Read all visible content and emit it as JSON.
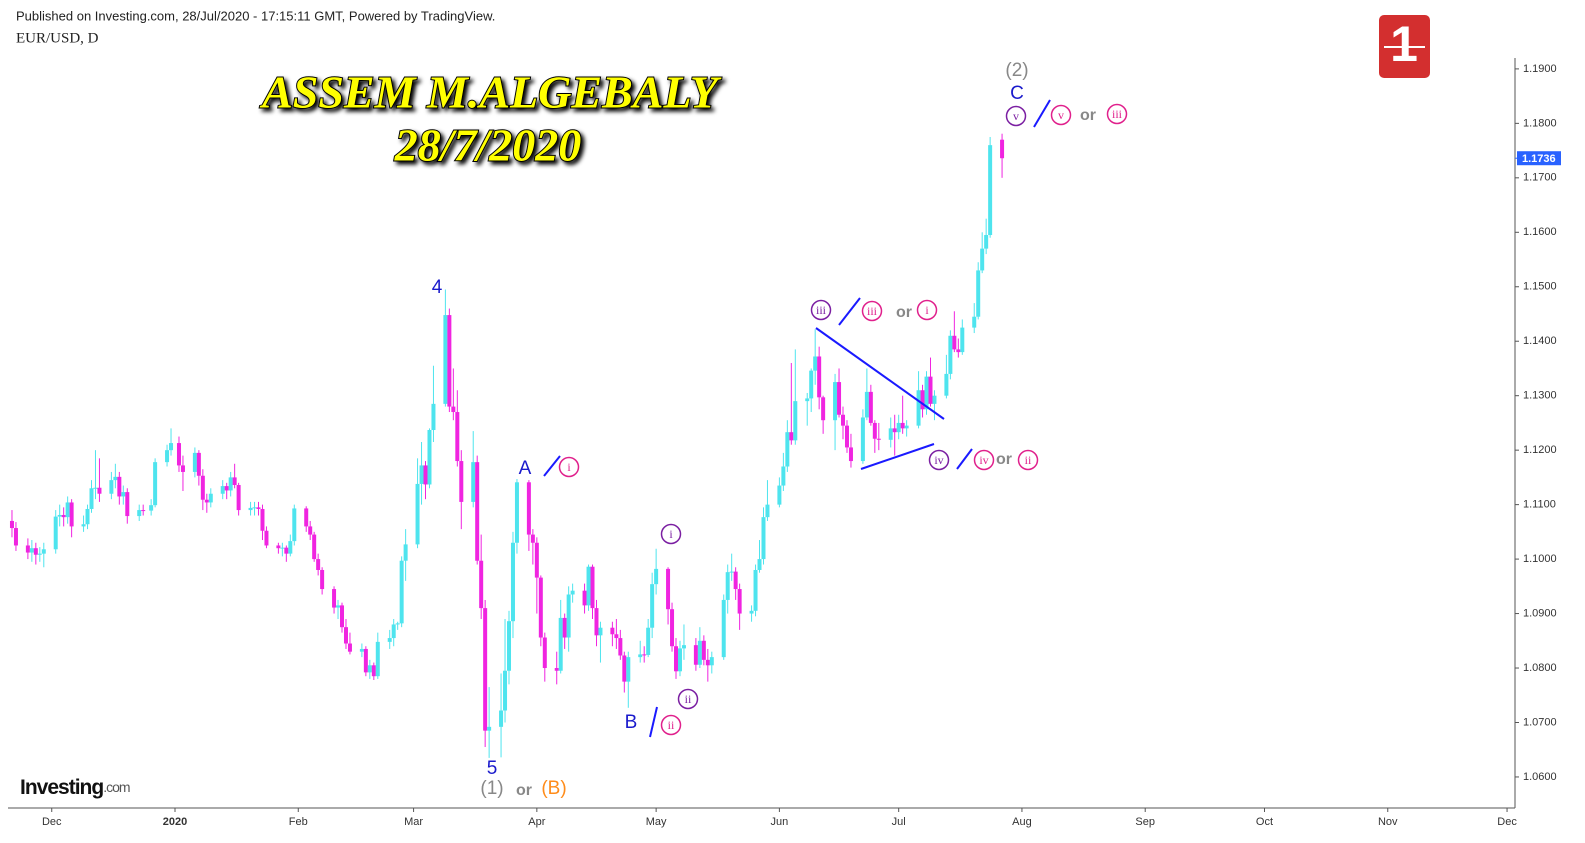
{
  "header": {
    "published": "Published on Investing.com, 28/Jul/2020 - 17:15:11 GMT, Powered by TradingView.",
    "symbol": "EUR/USD, D"
  },
  "overlay_title": [
    "ASSEM M.ALGEBALY",
    "28/7/2020"
  ],
  "logos": {
    "investing": "Investing",
    "investing_suffix": ".com",
    "badge": "1"
  },
  "chart_data": {
    "type": "candlestick",
    "title": "EUR/USD, D",
    "up_color": "#4ee4ee",
    "down_color": "#f024e0",
    "xlim": [
      -1,
      378
    ],
    "ylim": [
      1.0543,
      1.192
    ],
    "xticks": [
      {
        "value": 10,
        "label": "Dec"
      },
      {
        "value": 41,
        "label": "2020"
      },
      {
        "value": 72,
        "label": "Feb"
      },
      {
        "value": 101,
        "label": "Mar"
      },
      {
        "value": 132,
        "label": "Apr"
      },
      {
        "value": 162,
        "label": "May"
      },
      {
        "value": 193,
        "label": "Jun"
      },
      {
        "value": 223,
        "label": "Jul"
      },
      {
        "value": 254,
        "label": "Aug"
      },
      {
        "value": 285,
        "label": "Sep"
      },
      {
        "value": 315,
        "label": "Oct"
      },
      {
        "value": 346,
        "label": "Nov"
      },
      {
        "value": 376,
        "label": "Dec"
      }
    ],
    "yticks": [
      {
        "value": 1.06,
        "label": "1.0600"
      },
      {
        "value": 1.07,
        "label": "1.0700"
      },
      {
        "value": 1.08,
        "label": "1.0800"
      },
      {
        "value": 1.09,
        "label": "1.0900"
      },
      {
        "value": 1.1,
        "label": "1.1000"
      },
      {
        "value": 1.11,
        "label": "1.1100"
      },
      {
        "value": 1.12,
        "label": "1.1200"
      },
      {
        "value": 1.13,
        "label": "1.1300"
      },
      {
        "value": 1.14,
        "label": "1.1400"
      },
      {
        "value": 1.15,
        "label": "1.1500"
      },
      {
        "value": 1.16,
        "label": "1.1600"
      },
      {
        "value": 1.17,
        "label": "1.1700"
      },
      {
        "value": 1.18,
        "label": "1.1800"
      },
      {
        "value": 1.19,
        "label": "1.1900"
      }
    ],
    "last_price": {
      "value": 1.1736,
      "label": "1.1736"
    },
    "annotations": [
      "4",
      "5",
      "(1)",
      "or",
      "(B)",
      "A",
      "i",
      "B",
      "ii",
      "ii",
      "i",
      "iii",
      "iii",
      "or",
      "i",
      "iv",
      "iv",
      "or",
      "ii",
      "(2)",
      "C",
      "v",
      "v",
      "or",
      "iii"
    ],
    "x": [
      0,
      1,
      4,
      5,
      6,
      7,
      8,
      11,
      12,
      13,
      14,
      15,
      18,
      19,
      20,
      21,
      22,
      25,
      26,
      27,
      28,
      29,
      32,
      33,
      35,
      36,
      39,
      40,
      42,
      43,
      46,
      47,
      48,
      49,
      50,
      53,
      54,
      55,
      56,
      57,
      60,
      61,
      62,
      63,
      64,
      67,
      68,
      69,
      70,
      71,
      74,
      75,
      76,
      77,
      78,
      81,
      82,
      83,
      84,
      85,
      88,
      89,
      90,
      91,
      92,
      95,
      96,
      97,
      98,
      99,
      102,
      103,
      104,
      105,
      106,
      109,
      110,
      111,
      112,
      113,
      116,
      117,
      118,
      119,
      120,
      123,
      124,
      125,
      126,
      127,
      130,
      131,
      132,
      133,
      134,
      137,
      138,
      139,
      140,
      141,
      144,
      145,
      146,
      147,
      148,
      151,
      152,
      153,
      154,
      155,
      158,
      159,
      160,
      161,
      162,
      165,
      166,
      167,
      168,
      169,
      172,
      173,
      174,
      175,
      176,
      179,
      180,
      181,
      182,
      183,
      186,
      187,
      188,
      189,
      190,
      193,
      194,
      195,
      196,
      197,
      200,
      201,
      202,
      203,
      204,
      207,
      208,
      209,
      210,
      211,
      214,
      215,
      216,
      217,
      218,
      221,
      222,
      223,
      224,
      225,
      228,
      229,
      230,
      231,
      232,
      235,
      236,
      237,
      238,
      239,
      242,
      243,
      244,
      245,
      246,
      249
    ],
    "ohlc": [
      [
        1.107,
        1.109,
        1.104,
        1.1057
      ],
      [
        1.1057,
        1.1068,
        1.1015,
        1.1025
      ],
      [
        1.1025,
        1.1038,
        1.1,
        1.1012
      ],
      [
        1.1012,
        1.1035,
        1.0995,
        1.102
      ],
      [
        1.102,
        1.103,
        1.099,
        1.1008
      ],
      [
        1.1008,
        1.1022,
        1.0995,
        1.101
      ],
      [
        1.101,
        1.103,
        1.0985,
        1.1018
      ],
      [
        1.1018,
        1.109,
        1.101,
        1.1078
      ],
      [
        1.1078,
        1.11,
        1.106,
        1.1081
      ],
      [
        1.1081,
        1.1095,
        1.106,
        1.1077
      ],
      [
        1.1077,
        1.1115,
        1.1065,
        1.1104
      ],
      [
        1.1104,
        1.111,
        1.104,
        1.106
      ],
      [
        1.106,
        1.108,
        1.105,
        1.1064
      ],
      [
        1.1064,
        1.11,
        1.1055,
        1.1092
      ],
      [
        1.1092,
        1.1145,
        1.1085,
        1.113
      ],
      [
        1.113,
        1.12,
        1.111,
        1.1131
      ],
      [
        1.1131,
        1.1185,
        1.1105,
        1.112
      ],
      [
        1.112,
        1.116,
        1.111,
        1.1145
      ],
      [
        1.1145,
        1.1175,
        1.113,
        1.1151
      ],
      [
        1.1151,
        1.116,
        1.11,
        1.1115
      ],
      [
        1.1115,
        1.1135,
        1.11,
        1.1123
      ],
      [
        1.1123,
        1.113,
        1.1065,
        1.1079
      ],
      [
        1.1079,
        1.11,
        1.107,
        1.109
      ],
      [
        1.109,
        1.11,
        1.108,
        1.1089
      ],
      [
        1.1089,
        1.111,
        1.108,
        1.1099
      ],
      [
        1.1099,
        1.1185,
        1.1095,
        1.1178
      ],
      [
        1.1178,
        1.121,
        1.117,
        1.12
      ],
      [
        1.12,
        1.124,
        1.119,
        1.1213
      ],
      [
        1.1213,
        1.1225,
        1.116,
        1.1172
      ],
      [
        1.1172,
        1.119,
        1.1125,
        1.116
      ],
      [
        1.116,
        1.1205,
        1.115,
        1.1195
      ],
      [
        1.1195,
        1.12,
        1.1135,
        1.1153
      ],
      [
        1.1153,
        1.1165,
        1.109,
        1.1109
      ],
      [
        1.1109,
        1.112,
        1.1085,
        1.1104
      ],
      [
        1.1104,
        1.113,
        1.1095,
        1.112
      ],
      [
        1.112,
        1.1145,
        1.111,
        1.1134
      ],
      [
        1.1134,
        1.114,
        1.111,
        1.1126
      ],
      [
        1.1126,
        1.116,
        1.1115,
        1.115
      ],
      [
        1.115,
        1.1175,
        1.113,
        1.1136
      ],
      [
        1.1136,
        1.114,
        1.108,
        1.109
      ],
      [
        1.109,
        1.1105,
        1.108,
        1.1094
      ],
      [
        1.1094,
        1.1105,
        1.108,
        1.1095
      ],
      [
        1.1095,
        1.1105,
        1.108,
        1.1092
      ],
      [
        1.1092,
        1.11,
        1.1035,
        1.1052
      ],
      [
        1.1052,
        1.106,
        1.102,
        1.1025
      ],
      [
        1.1025,
        1.103,
        1.101,
        1.102
      ],
      [
        1.102,
        1.103,
        1.1005,
        1.1021
      ],
      [
        1.1021,
        1.1025,
        1.0995,
        1.101
      ],
      [
        1.101,
        1.1045,
        1.1005,
        1.1033
      ],
      [
        1.1033,
        1.11,
        1.1025,
        1.1093
      ],
      [
        1.1093,
        1.1097,
        1.105,
        1.106
      ],
      [
        1.106,
        1.107,
        1.1035,
        1.1045
      ],
      [
        1.1045,
        1.105,
        1.0995,
        1.1
      ],
      [
        1.1,
        1.101,
        1.097,
        1.098
      ],
      [
        1.098,
        1.0985,
        1.0935,
        1.0945
      ],
      [
        1.0945,
        1.095,
        1.09,
        1.0911
      ],
      [
        1.0911,
        1.0925,
        1.089,
        1.0915
      ],
      [
        1.0915,
        1.092,
        1.0865,
        1.0875
      ],
      [
        1.0875,
        1.089,
        1.0835,
        1.0845
      ],
      [
        1.0845,
        1.0865,
        1.0825,
        1.083
      ],
      [
        1.083,
        1.0845,
        1.082,
        1.0835
      ],
      [
        1.0835,
        1.084,
        1.0785,
        1.0792
      ],
      [
        1.0792,
        1.0815,
        1.078,
        1.0805
      ],
      [
        1.0805,
        1.081,
        1.0778,
        1.0785
      ],
      [
        1.0785,
        1.0865,
        1.078,
        1.0848
      ],
      [
        1.0848,
        1.087,
        1.0835,
        1.0855
      ],
      [
        1.0855,
        1.089,
        1.084,
        1.088
      ],
      [
        1.088,
        1.0885,
        1.087,
        1.0882
      ],
      [
        1.0882,
        1.1005,
        1.0875,
        1.0997
      ],
      [
        1.0997,
        1.1055,
        1.096,
        1.1027
      ],
      [
        1.1027,
        1.1185,
        1.102,
        1.1138
      ],
      [
        1.1138,
        1.1215,
        1.11,
        1.1172
      ],
      [
        1.1172,
        1.118,
        1.111,
        1.1137
      ],
      [
        1.1137,
        1.124,
        1.113,
        1.1237
      ],
      [
        1.1237,
        1.1355,
        1.1215,
        1.1285
      ],
      [
        1.1285,
        1.1495,
        1.128,
        1.1448
      ],
      [
        1.1448,
        1.146,
        1.127,
        1.128
      ],
      [
        1.128,
        1.135,
        1.1255,
        1.127
      ],
      [
        1.127,
        1.131,
        1.117,
        1.118
      ],
      [
        1.118,
        1.12,
        1.1055,
        1.1105
      ],
      [
        1.1105,
        1.1235,
        1.1095,
        1.1178
      ],
      [
        1.1178,
        1.119,
        1.099,
        1.0997
      ],
      [
        1.0997,
        1.1045,
        1.089,
        1.091
      ],
      [
        1.091,
        1.0925,
        1.0655,
        1.0685
      ],
      [
        1.0685,
        1.0765,
        1.0635,
        1.0692
      ],
      [
        1.0692,
        1.079,
        1.0636,
        1.0722
      ],
      [
        1.0722,
        1.089,
        1.07,
        1.0795
      ],
      [
        1.0795,
        1.0905,
        1.077,
        1.0886
      ],
      [
        1.0886,
        1.105,
        1.0855,
        1.103
      ],
      [
        1.103,
        1.1147,
        1.101,
        1.1141
      ],
      [
        1.1141,
        1.1145,
        1.1015,
        1.1045
      ],
      [
        1.1045,
        1.1055,
        1.099,
        1.103
      ],
      [
        1.103,
        1.104,
        1.09,
        1.0966
      ],
      [
        1.0966,
        1.097,
        1.084,
        1.0856
      ],
      [
        1.0856,
        1.0865,
        1.0775,
        1.08
      ],
      [
        1.08,
        1.083,
        1.077,
        1.0795
      ],
      [
        1.0795,
        1.0925,
        1.079,
        1.0892
      ],
      [
        1.0892,
        1.09,
        1.0835,
        1.0856
      ],
      [
        1.0856,
        1.095,
        1.083,
        1.0935
      ],
      [
        1.0935,
        1.0955,
        1.092,
        1.0942
      ],
      [
        1.0942,
        1.0955,
        1.09,
        1.0915
      ],
      [
        1.0915,
        1.099,
        1.0905,
        1.0986
      ],
      [
        1.0986,
        1.099,
        1.089,
        1.091
      ],
      [
        1.091,
        1.0925,
        1.084,
        1.086
      ],
      [
        1.086,
        1.0885,
        1.081,
        1.0874
      ],
      [
        1.0874,
        1.0885,
        1.084,
        1.0862
      ],
      [
        1.0862,
        1.089,
        1.0835,
        1.0855
      ],
      [
        1.0855,
        1.087,
        1.0815,
        1.0823
      ],
      [
        1.0823,
        1.083,
        1.0755,
        1.0775
      ],
      [
        1.0775,
        1.083,
        1.0727,
        1.082
      ],
      [
        1.082,
        1.085,
        1.081,
        1.0825
      ],
      [
        1.0825,
        1.084,
        1.081,
        1.0824
      ],
      [
        1.0824,
        1.089,
        1.082,
        1.0874
      ],
      [
        1.0874,
        1.0975,
        1.0855,
        1.0954
      ],
      [
        1.0954,
        1.1019,
        1.0935,
        1.0982
      ],
      [
        1.0982,
        1.0985,
        1.088,
        1.0908
      ],
      [
        1.0908,
        1.092,
        1.083,
        1.084
      ],
      [
        1.084,
        1.0855,
        1.078,
        1.0794
      ],
      [
        1.0794,
        1.085,
        1.0785,
        1.0836
      ],
      [
        1.0836,
        1.088,
        1.0815,
        1.0842
      ],
      [
        1.0842,
        1.0855,
        1.0795,
        1.0806
      ],
      [
        1.0806,
        1.0875,
        1.08,
        1.085
      ],
      [
        1.085,
        1.086,
        1.0805,
        1.0815
      ],
      [
        1.0815,
        1.0835,
        1.0775,
        1.0805
      ],
      [
        1.0805,
        1.083,
        1.079,
        1.082
      ],
      [
        1.082,
        1.0935,
        1.0815,
        1.0925
      ],
      [
        1.0925,
        1.099,
        1.09,
        1.0976
      ],
      [
        1.0976,
        1.101,
        1.096,
        1.0977
      ],
      [
        1.0977,
        1.0985,
        1.0925,
        1.0945
      ],
      [
        1.0945,
        1.0955,
        1.087,
        1.09
      ],
      [
        1.09,
        1.0915,
        1.0885,
        1.0905
      ],
      [
        1.0905,
        1.099,
        1.0895,
        1.098
      ],
      [
        1.098,
        1.1035,
        1.0975,
        1.1
      ],
      [
        1.1,
        1.1095,
        1.099,
        1.1077
      ],
      [
        1.1077,
        1.1145,
        1.107,
        1.11
      ],
      [
        1.11,
        1.115,
        1.1095,
        1.1135
      ],
      [
        1.1135,
        1.1195,
        1.1125,
        1.117
      ],
      [
        1.117,
        1.1255,
        1.116,
        1.1233
      ],
      [
        1.1233,
        1.136,
        1.121,
        1.1218
      ],
      [
        1.1218,
        1.1385,
        1.121,
        1.129
      ],
      [
        1.129,
        1.1305,
        1.1245,
        1.1295
      ],
      [
        1.1295,
        1.135,
        1.127,
        1.1346
      ],
      [
        1.1346,
        1.1422,
        1.132,
        1.1372
      ],
      [
        1.1372,
        1.139,
        1.1275,
        1.1297
      ],
      [
        1.1297,
        1.13,
        1.123,
        1.1255
      ],
      [
        1.1255,
        1.134,
        1.12,
        1.1325
      ],
      [
        1.1325,
        1.135,
        1.126,
        1.1265
      ],
      [
        1.1265,
        1.128,
        1.122,
        1.1245
      ],
      [
        1.1245,
        1.1255,
        1.1195,
        1.1205
      ],
      [
        1.1205,
        1.123,
        1.1168,
        1.118
      ],
      [
        1.118,
        1.1275,
        1.1175,
        1.126
      ],
      [
        1.126,
        1.135,
        1.1255,
        1.1307
      ],
      [
        1.1307,
        1.132,
        1.1245,
        1.125
      ],
      [
        1.125,
        1.1255,
        1.1195,
        1.1221
      ],
      [
        1.1221,
        1.125,
        1.12,
        1.1219
      ],
      [
        1.1219,
        1.126,
        1.1205,
        1.124
      ],
      [
        1.124,
        1.1265,
        1.119,
        1.1233
      ],
      [
        1.1233,
        1.1265,
        1.122,
        1.125
      ],
      [
        1.125,
        1.13,
        1.123,
        1.124
      ],
      [
        1.124,
        1.1255,
        1.1225,
        1.1245
      ],
      [
        1.1245,
        1.1345,
        1.124,
        1.131
      ],
      [
        1.131,
        1.132,
        1.126,
        1.1275
      ],
      [
        1.1275,
        1.1345,
        1.1265,
        1.1335
      ],
      [
        1.1335,
        1.137,
        1.128,
        1.1285
      ],
      [
        1.1285,
        1.131,
        1.1255,
        1.13
      ],
      [
        1.13,
        1.1375,
        1.1295,
        1.134
      ],
      [
        1.134,
        1.142,
        1.133,
        1.141
      ],
      [
        1.141,
        1.1455,
        1.138,
        1.1385
      ],
      [
        1.1385,
        1.1405,
        1.137,
        1.138
      ],
      [
        1.138,
        1.144,
        1.1375,
        1.1425
      ],
      [
        1.1425,
        1.147,
        1.1415,
        1.1445
      ],
      [
        1.1445,
        1.1545,
        1.144,
        1.153
      ],
      [
        1.153,
        1.16,
        1.1525,
        1.157
      ],
      [
        1.157,
        1.1625,
        1.156,
        1.1595
      ],
      [
        1.1595,
        1.1775,
        1.159,
        1.176
      ],
      [
        1.177,
        1.1781,
        1.17,
        1.1736
      ]
    ]
  }
}
